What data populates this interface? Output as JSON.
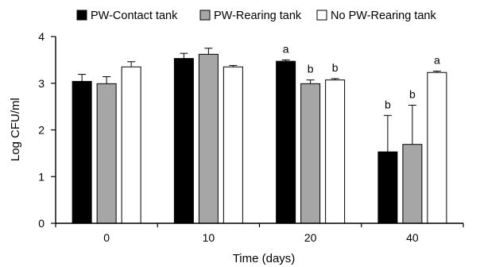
{
  "chart_data": {
    "type": "bar",
    "title": "",
    "xlabel": "Time (days)",
    "ylabel": "Log CFU/ml",
    "ylim": [
      0,
      4
    ],
    "yticks": [
      "0",
      "1",
      "2",
      "3",
      "4"
    ],
    "categories": [
      "0",
      "10",
      "20",
      "40"
    ],
    "legend_position": "top",
    "grid": false,
    "series": [
      {
        "name": "PW-Contact tank",
        "color": "#000000",
        "values": [
          3.04,
          3.53,
          3.47,
          1.53
        ],
        "errors": [
          0.15,
          0.11,
          0.03,
          0.78
        ],
        "labels": [
          "",
          "",
          "a",
          "b"
        ]
      },
      {
        "name": "PW-Rearing tank",
        "color": "#a6a6a6",
        "values": [
          2.99,
          3.62,
          2.99,
          1.69
        ],
        "errors": [
          0.15,
          0.13,
          0.08,
          0.84
        ],
        "labels": [
          "",
          "",
          "b",
          "b"
        ]
      },
      {
        "name": "No PW-Rearing tank",
        "color": "#ffffff",
        "values": [
          3.35,
          3.35,
          3.07,
          3.23
        ],
        "errors": [
          0.11,
          0.03,
          0.03,
          0.03
        ],
        "labels": [
          "",
          "",
          "b",
          "a"
        ]
      }
    ]
  }
}
